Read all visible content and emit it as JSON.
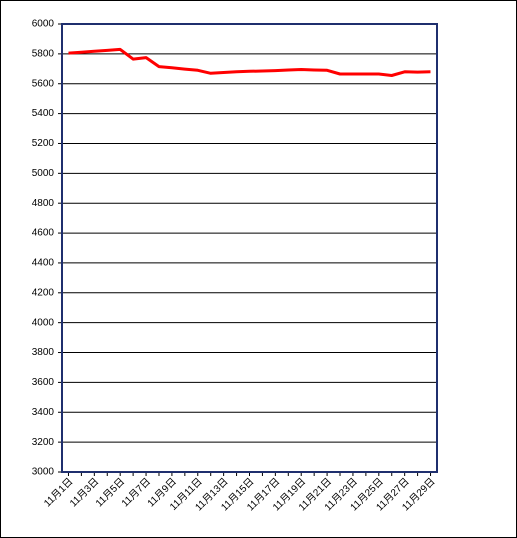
{
  "chart_data": {
    "type": "line",
    "categories": [
      "11月1日",
      null,
      "11月3日",
      null,
      "11月5日",
      null,
      "11月7日",
      null,
      "11月9日",
      null,
      "11月11日",
      null,
      "11月13日",
      null,
      "11月15日",
      null,
      "11月17日",
      null,
      "11月19日",
      null,
      "11月21日",
      null,
      "11月23日",
      null,
      "11月25日",
      null,
      "11月27日",
      null,
      "11月29日"
    ],
    "values": [
      5805,
      5811,
      5817,
      5823,
      5830,
      5765,
      5775,
      5715,
      5707,
      5698,
      5690,
      5670,
      5675,
      5680,
      5683,
      5685,
      5688,
      5692,
      5695,
      5692,
      5690,
      5665,
      5665,
      5665,
      5665,
      5655,
      5680,
      5678,
      5680
    ],
    "color": "#ff0000",
    "ylim": [
      3000,
      6000
    ],
    "yticks": [
      3000,
      3200,
      3400,
      3600,
      3800,
      4000,
      4200,
      4400,
      4600,
      4800,
      5000,
      5200,
      5400,
      5600,
      5800,
      6000
    ],
    "grid": true
  }
}
